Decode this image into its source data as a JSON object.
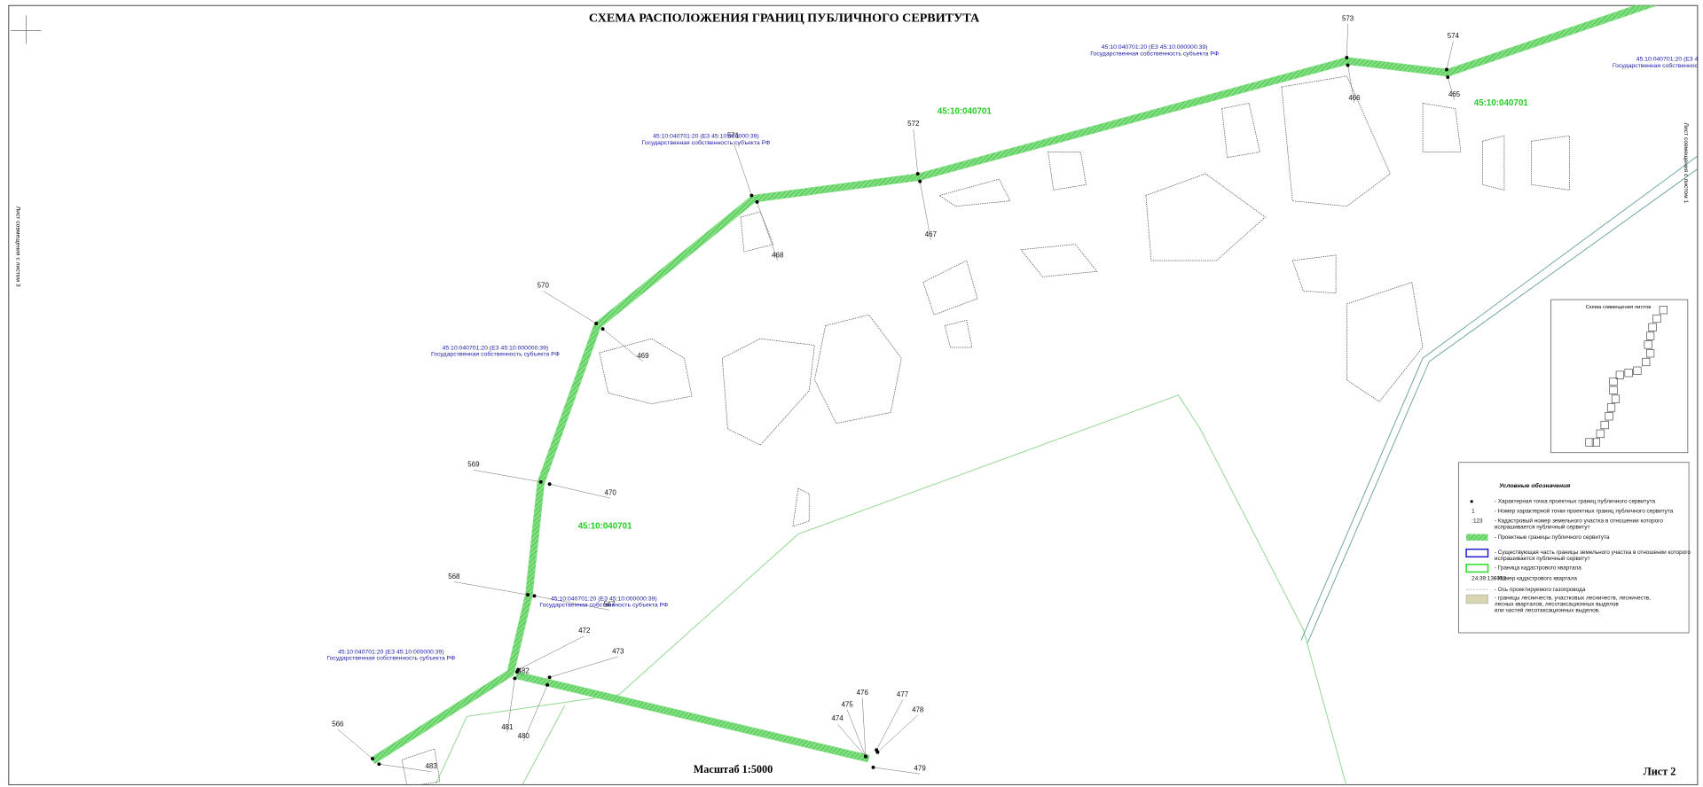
{
  "header": {
    "title": "СХЕМА РАСПОЛОЖЕНИЯ ГРАНИЦ ПУБЛИЧНОГО СЕРВИТУТА"
  },
  "footer": {
    "scale": "Масштаб 1:5000",
    "sheet": "Лист 2"
  },
  "side_labels": [
    "Лист совмещения с листом 3",
    "Лист совмещения с листом 1"
  ],
  "quarters": [
    "45:10:040701",
    "45:10:040701",
    "45:10:040701"
  ],
  "parcels": [
    {
      "number": "45:10:040701:20 (ЕЗ 45:10:000000:39)",
      "owner": "Государственная собственность субъекта РФ"
    },
    {
      "number": "45:10:040701:20 (ЕЗ 45:10:000000:39)",
      "owner": "Государственная собственность субъекта РФ"
    },
    {
      "number": "45:10:040701:20 (ЕЗ 45:10:000000:39)",
      "owner": "Государственная собственность субъекта РФ"
    },
    {
      "number": "45:10:040701:20 (ЕЗ 45:10:000000:39)",
      "owner": "Государственная собственность субъекта РФ"
    },
    {
      "number": "45:10:040701:20 (ЕЗ 45:10:000000:39)",
      "owner": "Государственная собственность субъекта РФ"
    },
    {
      "number": "45:10:040701:20 (ЕЗ 4",
      "owner": "Государственная собственность субъе"
    }
  ],
  "points": [
    "573",
    "466",
    "574",
    "465",
    "572",
    "467",
    "571",
    "468",
    "570",
    "469",
    "569",
    "470",
    "568",
    "567",
    "472",
    "473",
    "482",
    "481",
    "480",
    "566",
    "483",
    "476",
    "477",
    "475",
    "478",
    "474",
    "479"
  ],
  "inset": {
    "title": "Схема совмещения листов"
  },
  "legend": {
    "title": "Условные обозначения",
    "items": [
      {
        "lines": [
          "- Характерная точка проектных границ публичного сервитута"
        ]
      },
      {
        "symbol": "1",
        "lines": [
          "- Номер характерной точки проектных границ публичного сервитута"
        ]
      },
      {
        "symbol": ":123",
        "lines": [
          "- Кадастровый номер земельного участка в отношении которого",
          "испрашивается публичный сервитут"
        ]
      },
      {
        "lines": [
          "- Проектные границы публичного сервитута"
        ]
      },
      {
        "lines": [
          "- Существующая часть границы земельного участка в отношении которого",
          "испрашивается публичный сервитут"
        ]
      },
      {
        "lines": [
          "- Граница кадастрового квартала"
        ]
      },
      {
        "symbol": "24:39:136052",
        "lines": [
          "- Номер кадастрового квартала"
        ]
      },
      {
        "lines": [
          "- Ось проектируемого газопровода"
        ]
      },
      {
        "lines": [
          "- границы лесничеств, участковых лесничеств, лесничеств,",
          "лесных кварталов, лесотаксационных выделов",
          "или частей лесотаксационных выделов."
        ]
      }
    ]
  }
}
